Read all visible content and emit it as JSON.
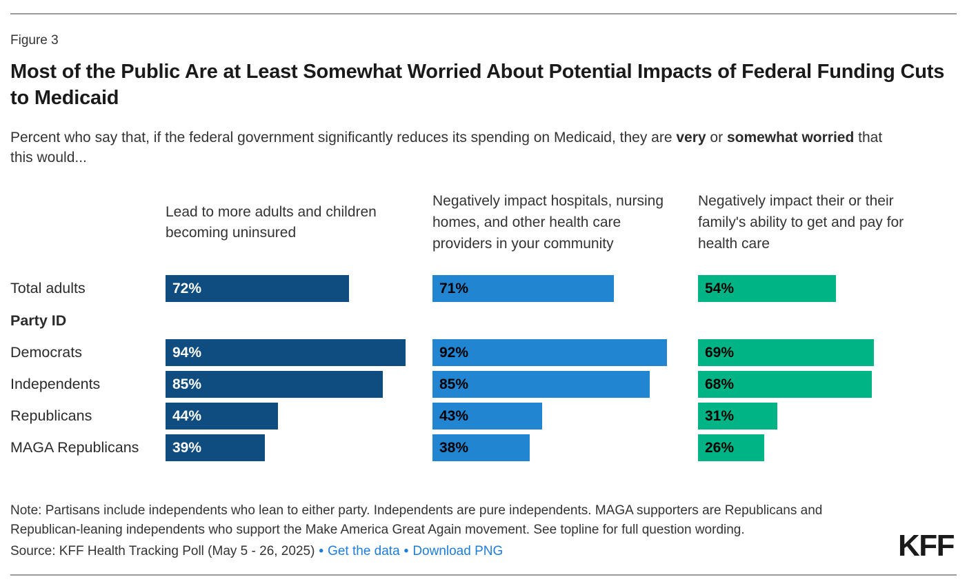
{
  "figure_label": "Figure 3",
  "title": "Most of the Public Are at Least Somewhat Worried About Potential Impacts of Federal Funding Cuts to Medicaid",
  "subtitle": {
    "prefix": "Percent who say that, if the federal government significantly reduces its spending on Medicaid, they are ",
    "bold1": "very",
    "middle": " or ",
    "bold2": "somewhat worried",
    "suffix": " that this would..."
  },
  "chart_data": {
    "type": "bar",
    "orientation": "horizontal",
    "categories": [
      "Total adults",
      "Democrats",
      "Independents",
      "Republicans",
      "MAGA Republicans"
    ],
    "group_label": "Party ID",
    "group_after_index": 0,
    "series": [
      {
        "name": "Lead to more adults and children becoming uninsured",
        "color": "#0f4c7f",
        "value_label_color": "#ffffff",
        "values": [
          72,
          94,
          85,
          44,
          39
        ]
      },
      {
        "name": "Negatively impact hospitals, nursing homes, and other health care providers in your community",
        "color": "#2185d2",
        "value_label_color": "#000000",
        "values": [
          71,
          92,
          85,
          43,
          38
        ]
      },
      {
        "name": "Negatively impact their or their family's ability to get and pay for health care",
        "color": "#00b485",
        "value_label_color": "#000000",
        "values": [
          54,
          69,
          68,
          31,
          26
        ]
      }
    ],
    "value_suffix": "%",
    "xlim": [
      0,
      100
    ],
    "grid": false,
    "legend_position": "column-headers"
  },
  "note": "Note: Partisans include independents who lean to either party. Independents are pure independents. MAGA supporters are Republicans and Republican-leaning independents who support the Make America Great Again movement. See topline for full question wording.",
  "source": {
    "text": "Source: KFF Health Tracking Poll (May 5 - 26, 2025)",
    "separator": "•",
    "links": [
      "Get the data",
      "Download PNG"
    ]
  },
  "logo": "KFF",
  "colors": {
    "bar_dark_blue": "#0f4c7f",
    "bar_blue": "#2185d2",
    "bar_green": "#00b485",
    "link_blue": "#1d7ddc",
    "divider_gray": "#9a9a9a"
  }
}
